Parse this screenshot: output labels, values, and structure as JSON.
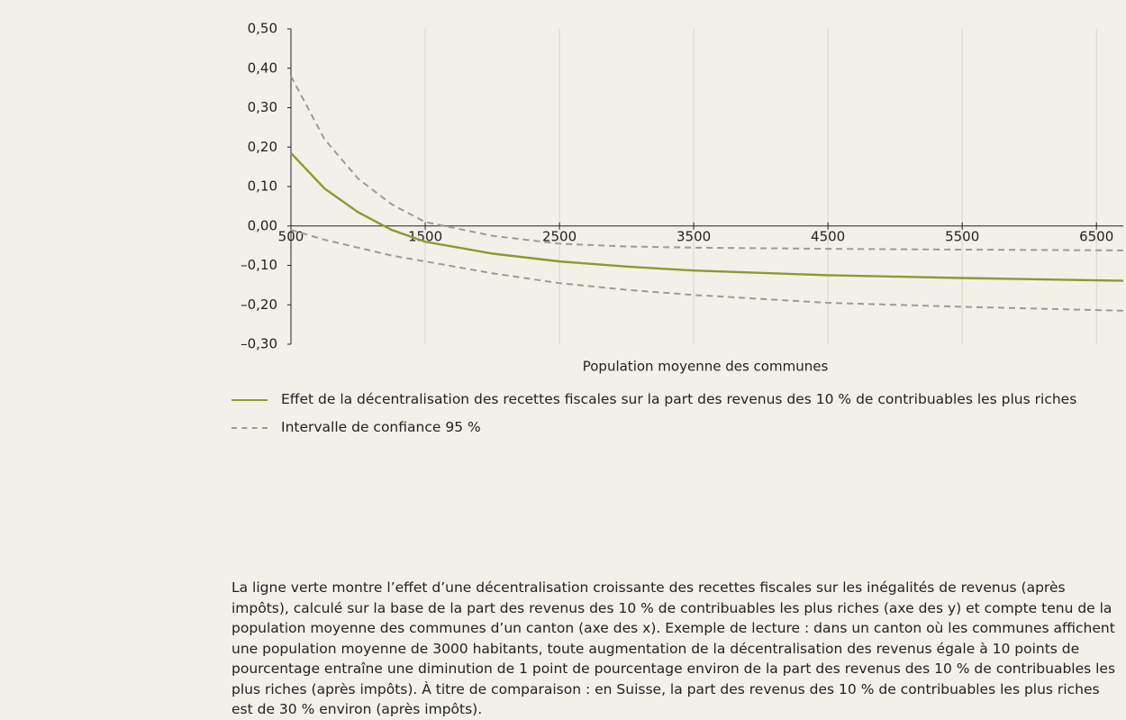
{
  "chart_data": {
    "type": "line",
    "xlabel": "Population moyenne des communes",
    "x": [
      500,
      750,
      1000,
      1250,
      1500,
      2000,
      2500,
      3000,
      3500,
      4500,
      5500,
      6700
    ],
    "series": [
      {
        "name": "Effet de la décentralisation des recettes fiscales sur la part des revenus des 10 % de contribuables les plus riches",
        "color": "#8c9a2f",
        "dash": false,
        "values": [
          0.185,
          0.095,
          0.035,
          -0.01,
          -0.04,
          -0.07,
          -0.09,
          -0.103,
          -0.113,
          -0.125,
          -0.132,
          -0.139
        ]
      },
      {
        "name": "Intervalle de confiance 95 %",
        "color": "#9b9b9b",
        "dash": true,
        "values": [
          0.38,
          0.22,
          0.12,
          0.055,
          0.01,
          -0.025,
          -0.045,
          -0.052,
          -0.055,
          -0.058,
          -0.06,
          -0.062
        ]
      },
      {
        "name": null,
        "color": "#9b9b9b",
        "dash": true,
        "values": [
          -0.01,
          -0.035,
          -0.055,
          -0.075,
          -0.09,
          -0.12,
          -0.145,
          -0.162,
          -0.175,
          -0.195,
          -0.205,
          -0.215
        ]
      }
    ],
    "xlim": [
      500,
      6700
    ],
    "xticks": [
      500,
      1500,
      2500,
      3500,
      4500,
      5500,
      6500
    ],
    "ylim": [
      -0.3,
      0.5
    ],
    "yticks": [
      {
        "value": 0.5,
        "label": "0,50"
      },
      {
        "value": 0.4,
        "label": "0,40"
      },
      {
        "value": 0.3,
        "label": "0,30"
      },
      {
        "value": 0.2,
        "label": "0,20"
      },
      {
        "value": 0.1,
        "label": "0,10"
      },
      {
        "value": 0,
        "label": "0,00"
      },
      {
        "value": -0.1,
        "label": "–0,10"
      },
      {
        "value": -0.2,
        "label": "–0,20"
      },
      {
        "value": -0.3,
        "label": "–0,30"
      }
    ],
    "grid": "x",
    "caption": "La ligne verte montre l’effet d’une décentralisation croissante des recettes fiscales sur les inégalités de revenus (après impôts), calculé sur la base de la part des revenus des 10 % de contribuables les plus riches (axe des y) et compte tenu de la population moyenne des communes d’un canton (axe des x). Exemple de lecture : dans un canton où les communes affichent une population moyenne de 3000 habitants, toute augmentation de la décentralisation des revenus égale à 10 points de pourcentage entraîne une diminution de 1 point de pourcentage environ de la part des revenus des 10 % de contribuables les plus riches (après impôts). À titre de comparaison : en Suisse, la part des revenus des 10 % de contribuables les plus riches est de 30 % environ (après impôts)."
  }
}
